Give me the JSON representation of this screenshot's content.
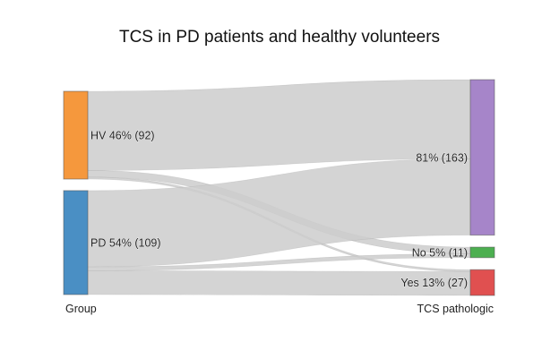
{
  "chart_data": {
    "type": "sankey",
    "title": "TCS in PD patients and healthy volunteers",
    "columns": [
      "Group",
      "TCS pathologic"
    ],
    "nodes": [
      {
        "id": "HV",
        "column": 0,
        "label": "HV 46% (92)",
        "value": 92,
        "color": "#f5983d"
      },
      {
        "id": "PD",
        "column": 0,
        "label": "PD 54% (109)",
        "value": 109,
        "color": "#4a8fc4"
      },
      {
        "id": "NA",
        "column": 1,
        "label": "81% (163)",
        "value": 163,
        "color": "#a685c9"
      },
      {
        "id": "No",
        "column": 1,
        "label": "No 5% (11)",
        "value": 11,
        "color": "#4caf50"
      },
      {
        "id": "Yes",
        "column": 1,
        "label": "Yes 13% (27)",
        "value": 27,
        "color": "#e05050"
      }
    ],
    "links": [
      {
        "source": "HV",
        "target": "NA",
        "value": 83
      },
      {
        "source": "HV",
        "target": "No",
        "value": 7
      },
      {
        "source": "HV",
        "target": "Yes",
        "value": 2
      },
      {
        "source": "PD",
        "target": "NA",
        "value": 80
      },
      {
        "source": "PD",
        "target": "No",
        "value": 4
      },
      {
        "source": "PD",
        "target": "Yes",
        "value": 25
      }
    ],
    "link_color": "#cccccc"
  }
}
